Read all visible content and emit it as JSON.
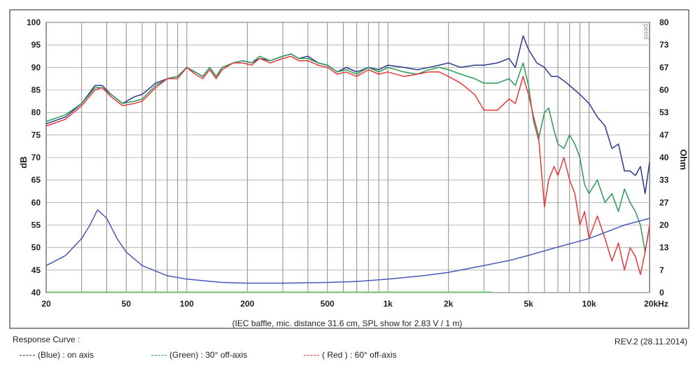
{
  "chart_data": {
    "type": "line",
    "caption": "(IEC baffle, mic. distance 31.6 cm, SPL show for 2.83 V / 1 m)",
    "ylabel_left": "dB",
    "ylabel_right": "Ohm",
    "ylim_left": [
      40,
      100
    ],
    "ylim_right": [
      0,
      80
    ],
    "x_scale": "log",
    "xlim": [
      20,
      20000
    ],
    "yticks_left": [
      100,
      95,
      90,
      85,
      80,
      75,
      70,
      65,
      60,
      55,
      50,
      45,
      40
    ],
    "yticks_right": [
      "80",
      "73",
      "67",
      "60",
      "53",
      "47",
      "40",
      "33",
      "27",
      "20",
      "13",
      "7",
      "0"
    ],
    "xtick_labels": [
      {
        "x": 20,
        "label": "20"
      },
      {
        "x": 50,
        "label": "50"
      },
      {
        "x": 100,
        "label": "100"
      },
      {
        "x": 200,
        "label": "200"
      },
      {
        "x": 500,
        "label": "500"
      },
      {
        "x": 1000,
        "label": "1k"
      },
      {
        "x": 2000,
        "label": "2k"
      },
      {
        "x": 5000,
        "label": "5k"
      },
      {
        "x": 10000,
        "label": "10k"
      },
      {
        "x": 20000,
        "label": "20kHz"
      }
    ],
    "grid": true,
    "watermark": "peed",
    "series": [
      {
        "name": "(Blue) : on axis",
        "color": "#2c3a8c",
        "axis": "left",
        "points": [
          [
            20,
            77.5
          ],
          [
            25,
            79
          ],
          [
            30,
            82
          ],
          [
            35,
            86
          ],
          [
            38,
            86
          ],
          [
            42,
            84
          ],
          [
            48,
            82
          ],
          [
            55,
            83.5
          ],
          [
            60,
            84
          ],
          [
            70,
            86.5
          ],
          [
            80,
            87.5
          ],
          [
            90,
            88
          ],
          [
            100,
            90
          ],
          [
            110,
            89
          ],
          [
            120,
            88
          ],
          [
            130,
            90
          ],
          [
            140,
            88
          ],
          [
            150,
            90
          ],
          [
            170,
            91
          ],
          [
            190,
            91.5
          ],
          [
            210,
            91
          ],
          [
            230,
            92
          ],
          [
            260,
            91.5
          ],
          [
            300,
            92.5
          ],
          [
            330,
            93
          ],
          [
            360,
            92
          ],
          [
            400,
            92.5
          ],
          [
            450,
            91
          ],
          [
            500,
            90.5
          ],
          [
            560,
            89
          ],
          [
            620,
            90
          ],
          [
            700,
            89
          ],
          [
            800,
            90
          ],
          [
            900,
            89.5
          ],
          [
            1000,
            90.5
          ],
          [
            1200,
            90
          ],
          [
            1400,
            89.5
          ],
          [
            1600,
            90
          ],
          [
            1800,
            90.5
          ],
          [
            2000,
            91
          ],
          [
            2300,
            90
          ],
          [
            2700,
            90.5
          ],
          [
            3000,
            90.5
          ],
          [
            3500,
            91
          ],
          [
            4000,
            92
          ],
          [
            4300,
            90
          ],
          [
            4700,
            97
          ],
          [
            5000,
            94
          ],
          [
            5500,
            91
          ],
          [
            6000,
            90
          ],
          [
            6500,
            88
          ],
          [
            7000,
            88
          ],
          [
            7500,
            87
          ],
          [
            8000,
            86
          ],
          [
            9000,
            84
          ],
          [
            10000,
            82
          ],
          [
            11000,
            79
          ],
          [
            12000,
            77
          ],
          [
            13000,
            72
          ],
          [
            14000,
            73
          ],
          [
            15000,
            67
          ],
          [
            16000,
            67
          ],
          [
            17000,
            66
          ],
          [
            18000,
            68
          ],
          [
            19000,
            62
          ],
          [
            20000,
            69
          ]
        ]
      },
      {
        "name": "(Green) : 30° off-axis",
        "color": "#2a9a55",
        "axis": "left",
        "points": [
          [
            20,
            78
          ],
          [
            25,
            79.5
          ],
          [
            30,
            82
          ],
          [
            35,
            85.5
          ],
          [
            38,
            85.5
          ],
          [
            42,
            84
          ],
          [
            48,
            82
          ],
          [
            55,
            82.5
          ],
          [
            60,
            83
          ],
          [
            70,
            86
          ],
          [
            80,
            87.5
          ],
          [
            90,
            88
          ],
          [
            100,
            90
          ],
          [
            110,
            89
          ],
          [
            120,
            88
          ],
          [
            130,
            90
          ],
          [
            140,
            88
          ],
          [
            150,
            90
          ],
          [
            170,
            91
          ],
          [
            190,
            91.5
          ],
          [
            210,
            91
          ],
          [
            230,
            92.5
          ],
          [
            260,
            91.5
          ],
          [
            300,
            92.5
          ],
          [
            330,
            93
          ],
          [
            360,
            92
          ],
          [
            400,
            92
          ],
          [
            450,
            91
          ],
          [
            500,
            90.5
          ],
          [
            560,
            89
          ],
          [
            620,
            89.5
          ],
          [
            700,
            88.5
          ],
          [
            800,
            90
          ],
          [
            900,
            89
          ],
          [
            1000,
            90
          ],
          [
            1200,
            89
          ],
          [
            1400,
            88.5
          ],
          [
            1600,
            89.5
          ],
          [
            1800,
            90
          ],
          [
            2000,
            89.5
          ],
          [
            2300,
            88.5
          ],
          [
            2700,
            87.5
          ],
          [
            3000,
            86.5
          ],
          [
            3500,
            86.5
          ],
          [
            4000,
            87.5
          ],
          [
            4300,
            86
          ],
          [
            4700,
            91
          ],
          [
            5000,
            86
          ],
          [
            5300,
            78
          ],
          [
            5600,
            74
          ],
          [
            6000,
            80
          ],
          [
            6300,
            81
          ],
          [
            6700,
            76
          ],
          [
            7000,
            73
          ],
          [
            7500,
            72
          ],
          [
            8000,
            75
          ],
          [
            8500,
            73
          ],
          [
            9000,
            70
          ],
          [
            9500,
            64
          ],
          [
            10000,
            62
          ],
          [
            11000,
            65
          ],
          [
            12000,
            60
          ],
          [
            13000,
            62
          ],
          [
            14000,
            58
          ],
          [
            15000,
            63
          ],
          [
            16000,
            60
          ],
          [
            17000,
            58
          ],
          [
            18000,
            55
          ],
          [
            19000,
            49
          ],
          [
            20000,
            55
          ]
        ]
      },
      {
        "name": "( Red ) : 60° off-axis",
        "color": "#e8383b",
        "axis": "left",
        "points": [
          [
            20,
            77
          ],
          [
            25,
            78.5
          ],
          [
            30,
            81.5
          ],
          [
            35,
            85
          ],
          [
            38,
            85.5
          ],
          [
            42,
            83.5
          ],
          [
            48,
            81.5
          ],
          [
            55,
            82
          ],
          [
            60,
            82.5
          ],
          [
            70,
            85.5
          ],
          [
            80,
            87.5
          ],
          [
            90,
            87.5
          ],
          [
            100,
            90
          ],
          [
            110,
            88.5
          ],
          [
            120,
            87.5
          ],
          [
            130,
            89.5
          ],
          [
            140,
            87.5
          ],
          [
            150,
            89.5
          ],
          [
            170,
            91
          ],
          [
            190,
            91
          ],
          [
            210,
            90.5
          ],
          [
            230,
            92
          ],
          [
            260,
            91
          ],
          [
            300,
            92
          ],
          [
            330,
            92.5
          ],
          [
            360,
            91.5
          ],
          [
            400,
            91.5
          ],
          [
            450,
            90.5
          ],
          [
            500,
            90
          ],
          [
            560,
            88.5
          ],
          [
            620,
            89
          ],
          [
            700,
            88
          ],
          [
            800,
            89.5
          ],
          [
            900,
            88.5
          ],
          [
            1000,
            89
          ],
          [
            1200,
            88
          ],
          [
            1400,
            88.5
          ],
          [
            1600,
            89
          ],
          [
            1800,
            89
          ],
          [
            2000,
            88
          ],
          [
            2300,
            86.5
          ],
          [
            2700,
            84
          ],
          [
            3000,
            80.5
          ],
          [
            3500,
            80.5
          ],
          [
            4000,
            83
          ],
          [
            4300,
            82
          ],
          [
            4700,
            88
          ],
          [
            5000,
            84
          ],
          [
            5300,
            79
          ],
          [
            5600,
            75
          ],
          [
            6000,
            59
          ],
          [
            6300,
            65
          ],
          [
            6700,
            68
          ],
          [
            7000,
            66
          ],
          [
            7500,
            70
          ],
          [
            8000,
            65
          ],
          [
            8500,
            62
          ],
          [
            9000,
            55
          ],
          [
            9500,
            58
          ],
          [
            10000,
            52
          ],
          [
            11000,
            57
          ],
          [
            12000,
            52
          ],
          [
            13000,
            47
          ],
          [
            14000,
            51
          ],
          [
            15000,
            45
          ],
          [
            16000,
            50
          ],
          [
            17000,
            48
          ],
          [
            18000,
            44
          ],
          [
            19000,
            49
          ],
          [
            20000,
            55
          ]
        ]
      },
      {
        "name": "Impedance",
        "color": "#4a58b8",
        "axis": "right",
        "points": [
          [
            20,
            8
          ],
          [
            25,
            11
          ],
          [
            30,
            16
          ],
          [
            33,
            20
          ],
          [
            36,
            24.5
          ],
          [
            40,
            22
          ],
          [
            45,
            16
          ],
          [
            50,
            12
          ],
          [
            60,
            8
          ],
          [
            80,
            5
          ],
          [
            100,
            4
          ],
          [
            150,
            3
          ],
          [
            200,
            2.8
          ],
          [
            300,
            2.8
          ],
          [
            500,
            3
          ],
          [
            700,
            3.3
          ],
          [
            1000,
            4
          ],
          [
            1500,
            5
          ],
          [
            2000,
            6
          ],
          [
            3000,
            8
          ],
          [
            4000,
            9.5
          ],
          [
            5000,
            11
          ],
          [
            7000,
            13.5
          ],
          [
            10000,
            16
          ],
          [
            15000,
            20
          ],
          [
            20000,
            22
          ]
        ]
      },
      {
        "name": "Baseline",
        "color": "#7cc87c",
        "axis": "left",
        "points": [
          [
            20,
            40.1
          ],
          [
            3300,
            40.1
          ]
        ]
      }
    ]
  },
  "legend": {
    "title": "Response Curve :",
    "items": [
      {
        "label": "(Blue)  : on axis",
        "color": "#2c3a8c"
      },
      {
        "label": "(Green) : 30° off-axis",
        "color": "#2a9a55"
      },
      {
        "label": "( Red ) : 60° off-axis",
        "color": "#e8383b"
      }
    ]
  },
  "revision": "REV.2 (28.11.2014)"
}
